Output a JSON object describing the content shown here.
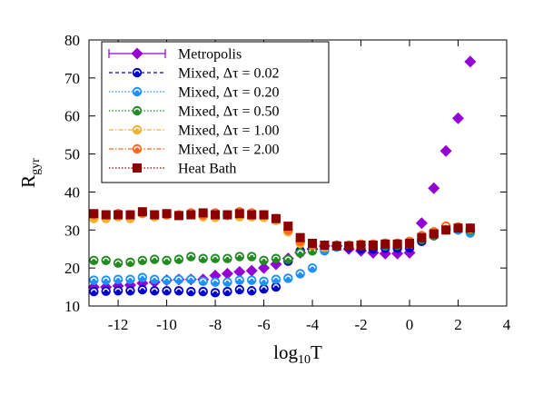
{
  "chart_data": {
    "type": "scatter",
    "xlabel": {
      "base": "log",
      "sub": "10",
      "tail": "T"
    },
    "ylabel": {
      "base": "R",
      "sub": "gyr"
    },
    "xlim": [
      -13.2,
      4
    ],
    "ylim": [
      10,
      80
    ],
    "x_ticks": [
      -12,
      -10,
      -8,
      -6,
      -4,
      -2,
      0,
      2,
      4
    ],
    "y_ticks": [
      10,
      20,
      30,
      40,
      50,
      60,
      70,
      80
    ],
    "x_tick_labels": [
      "-12",
      "-10",
      "-8",
      "-6",
      "-4",
      "-2",
      "0",
      "2",
      "4"
    ],
    "y_tick_labels": [
      "10",
      "20",
      "30",
      "40",
      "50",
      "60",
      "70",
      "80"
    ],
    "grid": false,
    "legend_position": "top-left",
    "x": [
      -13.0,
      -12.5,
      -12.0,
      -11.5,
      -11.0,
      -10.5,
      -10.0,
      -9.5,
      -9.0,
      -8.5,
      -8.0,
      -7.5,
      -7.0,
      -6.5,
      -6.0,
      -5.5,
      -5.0,
      -4.5,
      -4.0,
      -3.5,
      -3.0,
      -2.5,
      -2.0,
      -1.5,
      -1.0,
      -0.5,
      0.0,
      0.5,
      1.0,
      1.5,
      2.0,
      2.5
    ],
    "series": [
      {
        "name": "Metropolis",
        "color": "#9400d3",
        "marker": "diamond",
        "line": "solid",
        "values": [
          15.0,
          15.0,
          15.3,
          15.5,
          16.0,
          16.3,
          16.8,
          17.0,
          17.0,
          17.0,
          18.0,
          18.5,
          19.0,
          19.3,
          20.0,
          21.0,
          22.5,
          24.0,
          25.0,
          25.8,
          25.8,
          25.0,
          24.5,
          24.0,
          23.8,
          23.8,
          24.0,
          31.8,
          41.0,
          50.8,
          59.4,
          74.3
        ]
      },
      {
        "name": "Mixed, Δτ = 0.02",
        "color": "#0000cd",
        "marker": "circle",
        "line": "dashed",
        "values": [
          13.8,
          13.9,
          14.0,
          14.0,
          14.3,
          14.0,
          14.0,
          14.0,
          13.8,
          13.8,
          13.5,
          13.8,
          14.3,
          14.0,
          14.5,
          15.0,
          21.8,
          24.5,
          25.0,
          25.5,
          25.8,
          25.5,
          25.0,
          25.0,
          25.2,
          25.2,
          25.3,
          27.0,
          28.5,
          30.0,
          30.5,
          29.8
        ]
      },
      {
        "name": "Mixed, Δτ = 0.20",
        "color": "#1e90ff",
        "marker": "circle",
        "line": "dotted",
        "values": [
          16.8,
          16.8,
          17.0,
          17.0,
          17.5,
          17.0,
          16.8,
          17.0,
          17.0,
          16.5,
          16.3,
          16.3,
          16.8,
          16.8,
          16.5,
          17.0,
          17.3,
          18.5,
          20.0,
          24.5,
          25.5,
          26.0,
          26.0,
          26.0,
          25.8,
          26.0,
          26.5,
          27.5,
          29.0,
          30.0,
          30.0,
          29.2
        ]
      },
      {
        "name": "Mixed, Δτ = 0.50",
        "color": "#228b22",
        "marker": "circle",
        "line": "dotted",
        "values": [
          22.0,
          22.0,
          21.3,
          21.5,
          22.0,
          22.3,
          22.0,
          22.3,
          23.0,
          22.5,
          22.5,
          22.5,
          23.0,
          23.0,
          22.0,
          22.5,
          22.3,
          24.0,
          24.5,
          25.5,
          26.0,
          26.0,
          26.0,
          26.0,
          26.0,
          26.0,
          26.5,
          27.5,
          28.5,
          30.5,
          30.5,
          30.0
        ]
      },
      {
        "name": "Mixed, Δτ = 1.00",
        "color": "#f0b030",
        "marker": "circle",
        "line": "dashdot",
        "values": [
          33.0,
          33.0,
          33.5,
          33.0,
          34.3,
          33.5,
          34.0,
          33.8,
          34.0,
          33.5,
          33.3,
          33.8,
          33.5,
          33.5,
          33.3,
          32.5,
          29.5,
          26.5,
          26.0,
          25.5,
          25.8,
          26.0,
          26.0,
          26.0,
          26.5,
          26.5,
          26.5,
          28.5,
          29.5,
          31.0,
          30.5,
          30.3
        ]
      },
      {
        "name": "Mixed, Δτ = 2.00",
        "color": "#ff6a1a",
        "marker": "circle",
        "line": "dashdot",
        "values": [
          34.0,
          34.0,
          34.3,
          34.0,
          34.5,
          34.0,
          34.0,
          34.0,
          34.5,
          34.0,
          34.5,
          34.0,
          34.8,
          34.5,
          34.0,
          33.0,
          30.0,
          27.0,
          26.0,
          25.8,
          25.8,
          26.0,
          26.3,
          26.3,
          26.5,
          26.5,
          27.0,
          28.5,
          29.5,
          31.0,
          30.8,
          30.5
        ]
      },
      {
        "name": "Heat Bath",
        "color": "#8b0000",
        "marker": "square",
        "line": "dotted",
        "values": [
          34.3,
          34.0,
          34.0,
          34.0,
          34.8,
          34.0,
          34.3,
          33.8,
          34.0,
          34.5,
          34.0,
          34.0,
          34.3,
          34.0,
          34.0,
          33.0,
          31.0,
          28.0,
          26.5,
          26.0,
          25.8,
          25.8,
          26.0,
          26.0,
          26.3,
          26.3,
          26.5,
          28.0,
          29.0,
          30.0,
          30.5,
          30.5
        ]
      }
    ]
  }
}
